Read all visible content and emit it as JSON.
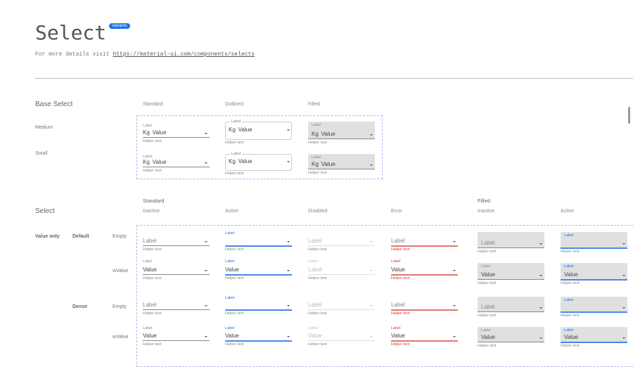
{
  "header": {
    "title": "Select",
    "badge": "Variants",
    "details_prefix": "For more details visit",
    "details_link": "https://material-ui.com/components/selects"
  },
  "base": {
    "title": "Base Select",
    "columns": [
      "Standard",
      "Outlined",
      "Filled"
    ],
    "rows": [
      "Medium",
      "Small"
    ],
    "field": {
      "label": "Label",
      "unit": "Kg",
      "value": "Value",
      "helper": "Helper text"
    }
  },
  "select": {
    "title": "Select",
    "group_standard": "Standard",
    "group_filled": "Filled",
    "columns": [
      "Inactive",
      "Active",
      "Disabled",
      "Error",
      "Inactive",
      "Active"
    ],
    "row_group": "Value only",
    "densities": [
      "Default",
      "Dense"
    ],
    "states": [
      "Empty",
      "wValue"
    ],
    "field": {
      "label": "Label",
      "value": "Value",
      "helper": "Helper text"
    }
  },
  "colors": {
    "accent": "#1a73e8",
    "error": "#e53935",
    "filled_bg": "#e0e0e0",
    "dashed_border": "#b9b0e8"
  }
}
